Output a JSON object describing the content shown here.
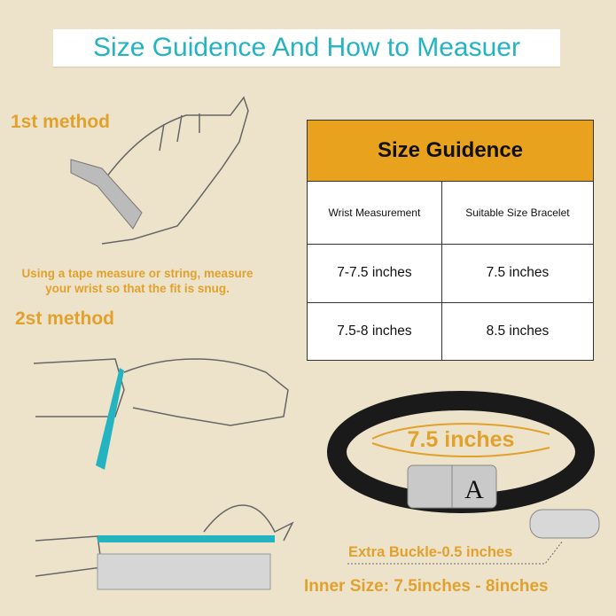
{
  "title": "Size Guidence And How to Measuer",
  "methods": {
    "first": "1st method",
    "second": "2st method"
  },
  "instruction": {
    "line1": "Using a tape measure or string, measure",
    "line2": "your wrist so that the fit is snug."
  },
  "size_table": {
    "heading": "Size Guidence",
    "columns": [
      "Wrist Measurement",
      "Suitable Size Bracelet"
    ],
    "rows": [
      [
        "7-7.5 inches",
        "7.5 inches"
      ],
      [
        "7.5-8 inches",
        "8.5 inches"
      ]
    ]
  },
  "bracelet": {
    "length_label": "7.5 inches",
    "clasp_letter": "A"
  },
  "extra_buckle": "Extra Buckle-0.5 inches",
  "inner_size": "Inner Size: 7.5inches - 8inches",
  "colors": {
    "background": "#ede3cb",
    "teal": "#24b3c0",
    "orange": "#e1a12c",
    "table_header": "#e8a21d"
  }
}
